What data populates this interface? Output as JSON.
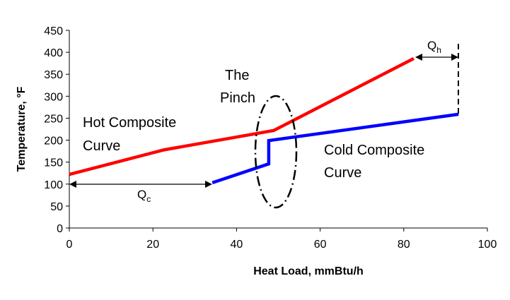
{
  "chart_data": {
    "type": "line",
    "xlabel": "Heat Load, mmBtu/h",
    "ylabel": "Temperature, °F",
    "xlim": [
      0,
      100
    ],
    "ylim": [
      0,
      450
    ],
    "xticks": [
      0,
      20,
      40,
      60,
      80,
      100
    ],
    "yticks": [
      0,
      50,
      100,
      150,
      200,
      250,
      300,
      350,
      400,
      450
    ],
    "grid": false,
    "series": [
      {
        "name": "Hot Composite Curve",
        "color": "#ff0000",
        "x": [
          0,
          22.7,
          48.9,
          82.4
        ],
        "y": [
          122,
          178,
          222,
          386
        ]
      },
      {
        "name": "Cold Composite Curve",
        "color": "#0000ff",
        "x": [
          34.2,
          47.7,
          47.7,
          93.1
        ],
        "y": [
          103,
          146,
          199,
          259
        ]
      }
    ],
    "annotations": {
      "hot_label": [
        "Hot Composite",
        "Curve"
      ],
      "cold_label": [
        "Cold Composite",
        "Curve"
      ],
      "pinch_label": [
        "The",
        "Pinch"
      ],
      "qh_label": "Q",
      "qh_sub": "h",
      "qc_label": "Q",
      "qc_sub": "c"
    }
  }
}
